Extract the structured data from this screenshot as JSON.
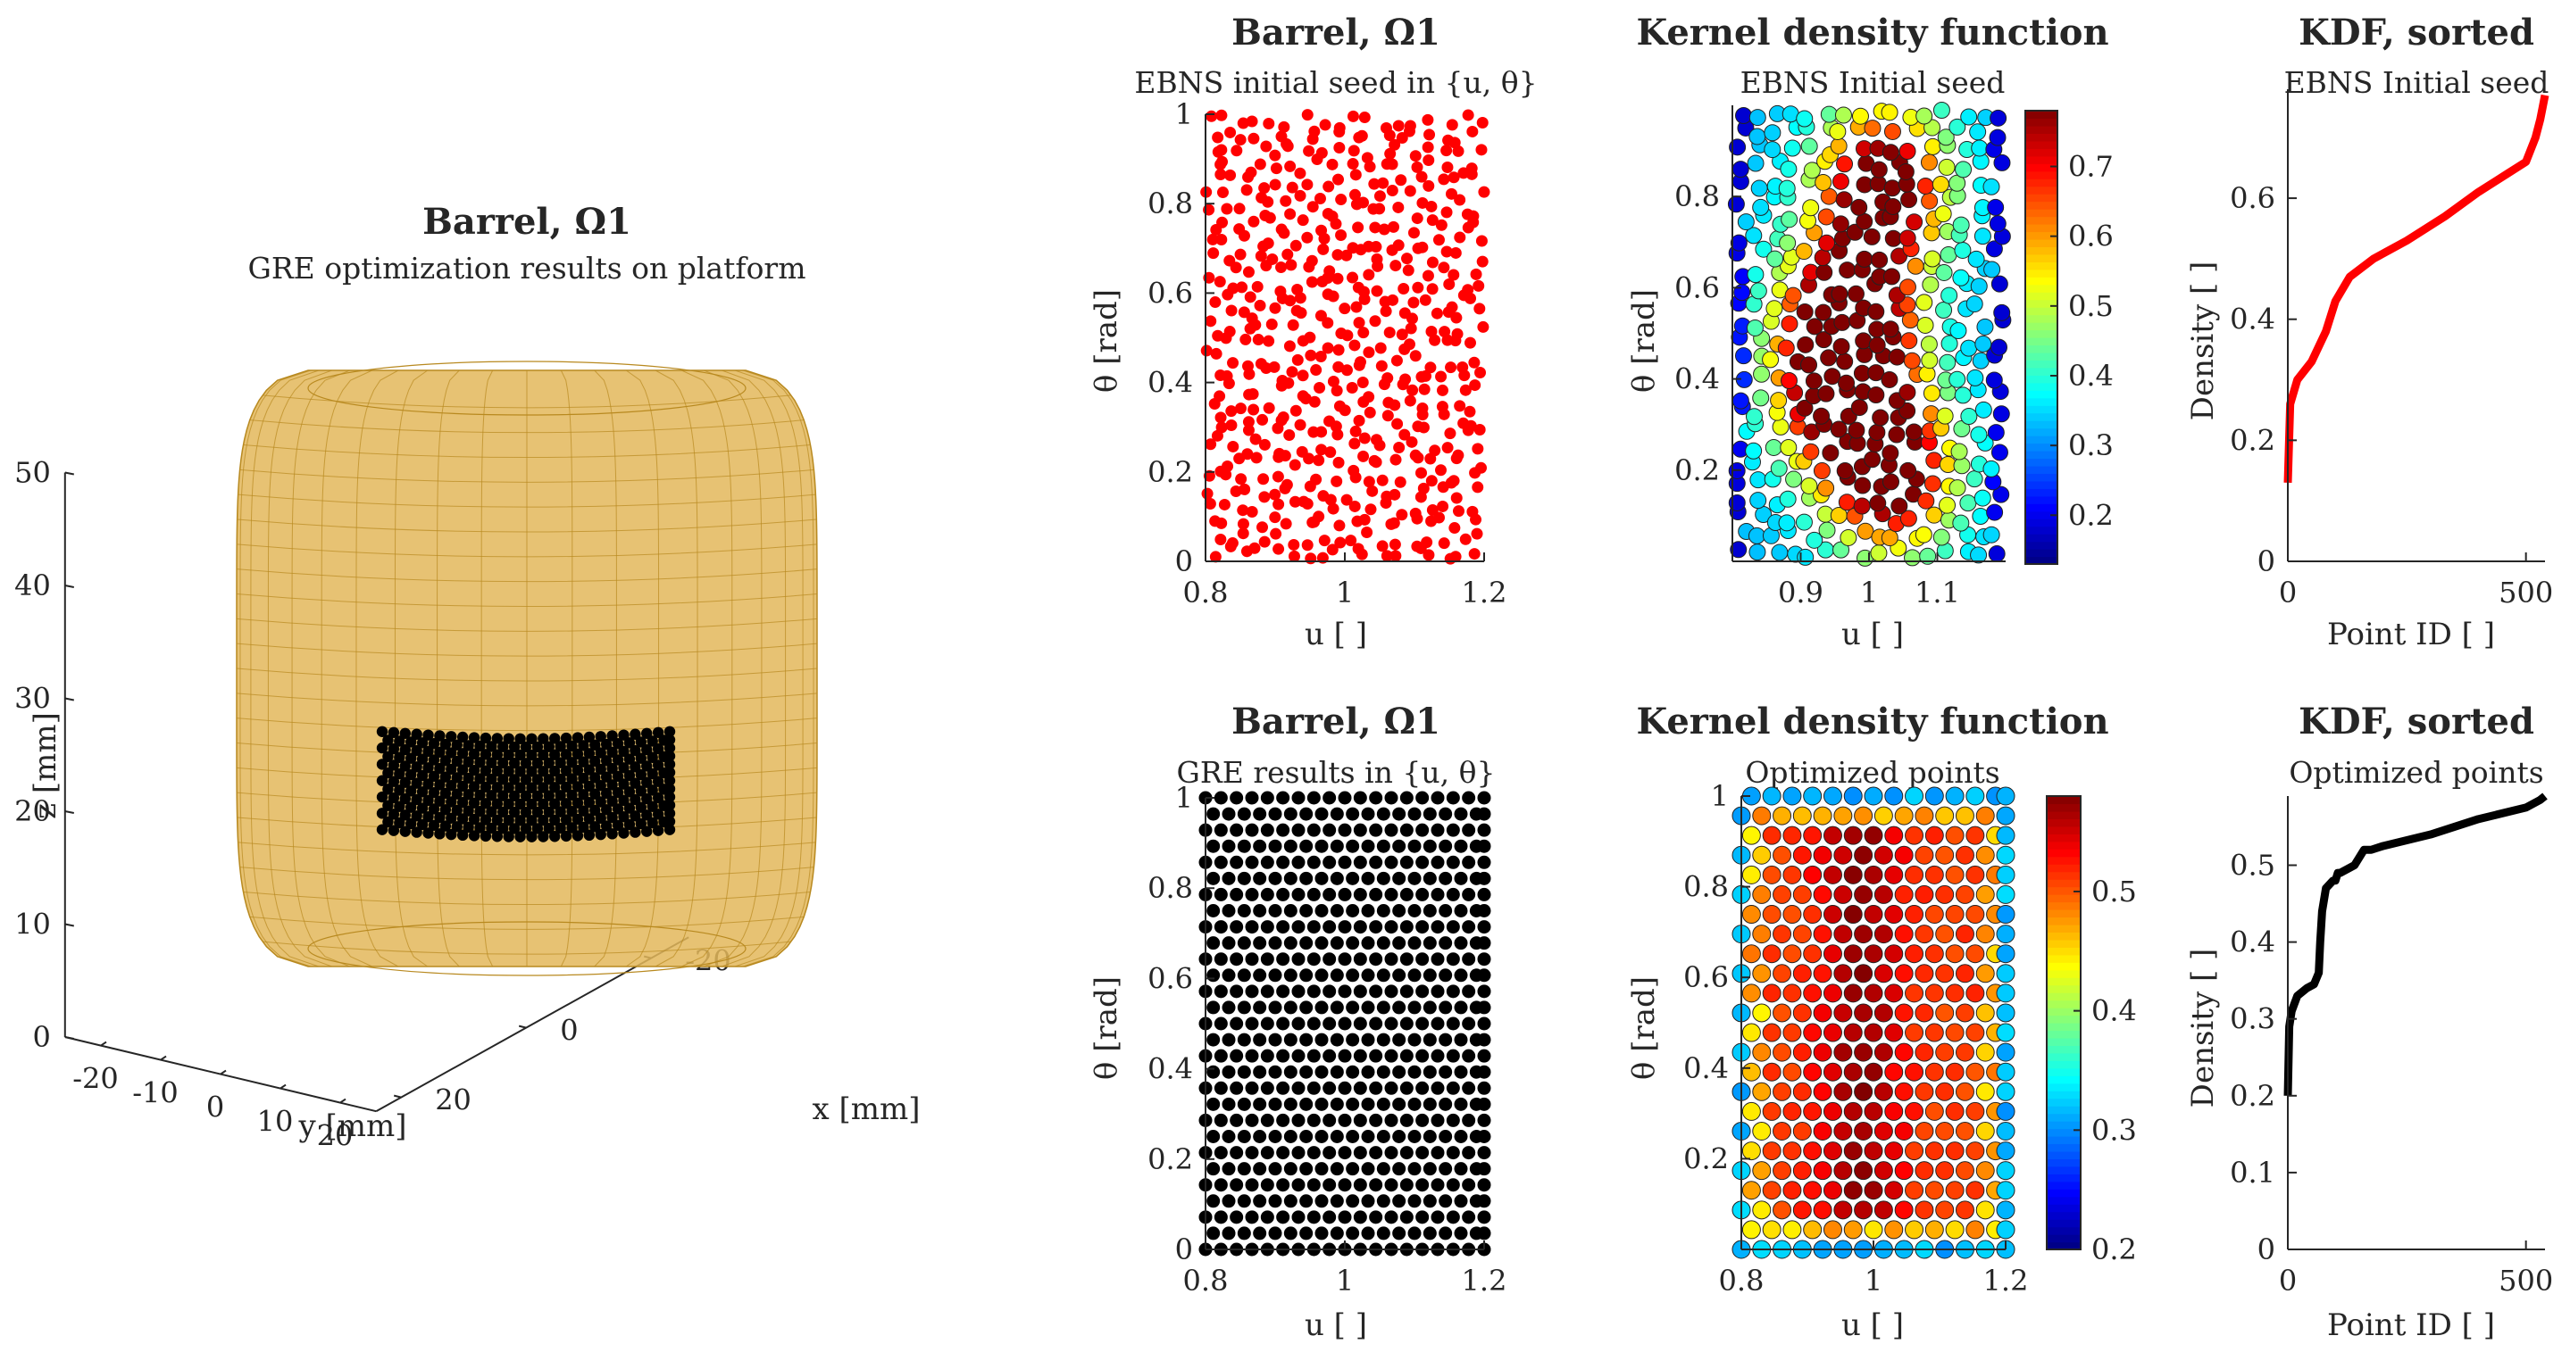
{
  "chart_data": [
    {
      "type": "surface3d",
      "title": "Barrel, Ω1",
      "subtitle": "GRE optimization results on platform",
      "xlabel": "x [mm]",
      "ylabel": "y [mm]",
      "zlabel": "z [mm]",
      "x_ticks": [
        "-20",
        "0",
        "20"
      ],
      "y_ticks": [
        "-20",
        "-10",
        "0",
        "10",
        "20"
      ],
      "z_ticks": [
        "0",
        "10",
        "20",
        "30",
        "40",
        "50"
      ],
      "surface_color": "#e3b75a",
      "mesh_color": "#b8891f",
      "points_color": "#000000",
      "patch_z_range": [
        19,
        28
      ]
    },
    {
      "type": "scatter",
      "title": "Barrel, Ω1",
      "subtitle": "EBNS initial seed in {u, θ}",
      "xlabel": "u [ ]",
      "ylabel": "θ [rad]",
      "xlim": [
        0.8,
        1.2
      ],
      "ylim": [
        0,
        1
      ],
      "x_ticks": [
        "0.8",
        "1",
        "1.2"
      ],
      "y_ticks": [
        "0",
        "0.2",
        "0.4",
        "0.6",
        "0.8",
        "1"
      ],
      "point_color": "#ff0000",
      "n_points": 540,
      "distribution": "random (blue-noise seed)"
    },
    {
      "type": "scatter",
      "title": "Kernel density function",
      "subtitle": "EBNS Initial seed",
      "xlabel": "u [ ]",
      "ylabel": "θ [rad]",
      "xlim": [
        0.8,
        1.2
      ],
      "ylim": [
        0,
        1
      ],
      "x_ticks": [
        "0.9",
        "1",
        "1.1"
      ],
      "y_ticks": [
        "0.2",
        "0.4",
        "0.6",
        "0.8"
      ],
      "colorbar_ticks": [
        "0.2",
        "0.3",
        "0.4",
        "0.5",
        "0.6",
        "0.7"
      ],
      "colorbar_range": [
        0.13,
        0.78
      ],
      "colormap": "jet"
    },
    {
      "type": "line",
      "title": "KDF, sorted",
      "subtitle": "EBNS Initial seed",
      "xlabel": "Point ID [ ]",
      "ylabel": "Density [ ]",
      "xlim": [
        0,
        540
      ],
      "ylim": [
        0,
        0.78
      ],
      "x_ticks": [
        "0",
        "500"
      ],
      "y_ticks": [
        "0",
        "0.2",
        "0.4",
        "0.6"
      ],
      "color": "#ff0000",
      "x": [
        0,
        5,
        20,
        50,
        80,
        100,
        130,
        180,
        250,
        330,
        400,
        460,
        500,
        520,
        530,
        535,
        540
      ],
      "y": [
        0.13,
        0.26,
        0.3,
        0.33,
        0.38,
        0.43,
        0.47,
        0.5,
        0.53,
        0.57,
        0.61,
        0.64,
        0.66,
        0.7,
        0.73,
        0.75,
        0.77
      ]
    },
    {
      "type": "scatter",
      "title": "Barrel, Ω1",
      "subtitle": "GRE results in {u, θ}",
      "xlabel": "u [ ]",
      "ylabel": "θ [rad]",
      "xlim": [
        0.8,
        1.2
      ],
      "ylim": [
        0,
        1
      ],
      "x_ticks": [
        "0.8",
        "1",
        "1.2"
      ],
      "y_ticks": [
        "0",
        "0.2",
        "0.4",
        "0.6",
        "0.8",
        "1"
      ],
      "point_color": "#000000",
      "grid_cols": 19,
      "grid_rows": 29,
      "distribution": "regular (hexagonal-like lattice)"
    },
    {
      "type": "scatter",
      "title": "Kernel density function",
      "subtitle": "Optimized points",
      "xlabel": "u [ ]",
      "ylabel": "θ [rad]",
      "xlim": [
        0.8,
        1.2
      ],
      "ylim": [
        0,
        1
      ],
      "x_ticks": [
        "0.8",
        "1",
        "1.2"
      ],
      "y_ticks": [
        "0.2",
        "0.4",
        "0.6",
        "0.8",
        "1"
      ],
      "colorbar_ticks": [
        "0.2",
        "0.3",
        "0.4",
        "0.5"
      ],
      "colorbar_range": [
        0.2,
        0.58
      ],
      "colormap": "jet"
    },
    {
      "type": "line",
      "title": "KDF, sorted",
      "subtitle": "Optimized points",
      "xlabel": "Point ID [ ]",
      "ylabel": "Density [ ]",
      "xlim": [
        0,
        540
      ],
      "ylim": [
        0,
        0.59
      ],
      "x_ticks": [
        "0",
        "500"
      ],
      "y_ticks": [
        "0",
        "0.1",
        "0.2",
        "0.3",
        "0.4",
        "0.5"
      ],
      "color": "#000000",
      "x": [
        0,
        3,
        8,
        20,
        40,
        55,
        65,
        68,
        72,
        80,
        95,
        100,
        105,
        110,
        140,
        150,
        160,
        175,
        200,
        300,
        400,
        500,
        530,
        540
      ],
      "y": [
        0.2,
        0.29,
        0.31,
        0.33,
        0.34,
        0.345,
        0.36,
        0.4,
        0.44,
        0.47,
        0.48,
        0.48,
        0.49,
        0.49,
        0.5,
        0.51,
        0.52,
        0.52,
        0.525,
        0.54,
        0.56,
        0.575,
        0.585,
        0.59
      ]
    }
  ]
}
